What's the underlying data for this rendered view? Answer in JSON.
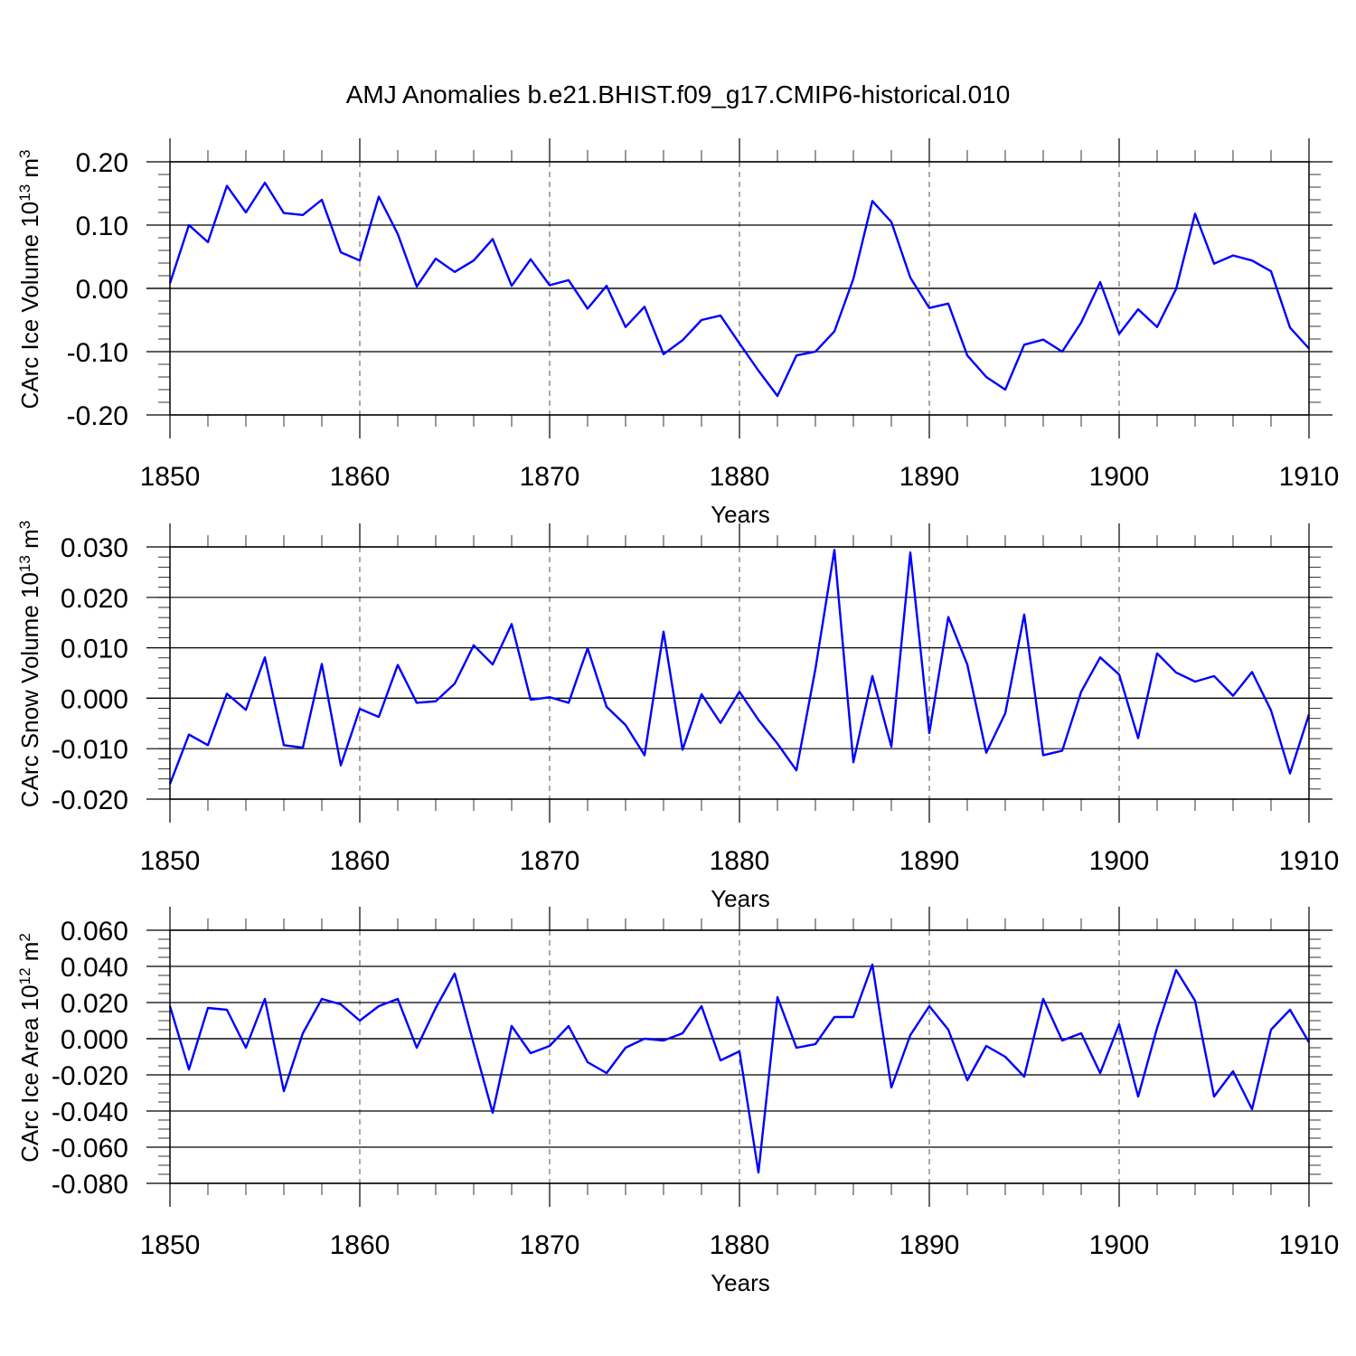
{
  "title": "AMJ Anomalies b.e21.BHIST.f09_g17.CMIP6-historical.010",
  "colors": {
    "line": "#0000ff",
    "frame": "#000000",
    "grid": "#555555"
  },
  "chart_data": [
    {
      "type": "line",
      "ylabel": {
        "prefix": "CArc Ice Volume 10",
        "exp": "13",
        "unit": " m",
        "unit_exp": "3"
      },
      "xlabel": "Years",
      "xlim": [
        1850,
        1910
      ],
      "ylim": [
        -0.2,
        0.2
      ],
      "x_ticks": [
        "1850",
        "1860",
        "1870",
        "1880",
        "1890",
        "1900",
        "1910"
      ],
      "y_ticks": [
        {
          "value": -0.2,
          "label": "-0.20"
        },
        {
          "value": -0.1,
          "label": "-0.10"
        },
        {
          "value": 0.0,
          "label": "0.00"
        },
        {
          "value": 0.1,
          "label": "0.10"
        },
        {
          "value": 0.2,
          "label": "0.20"
        }
      ],
      "y_minor": 0.02,
      "series": [
        {
          "name": "ice_volume",
          "x_start": 1850,
          "values": [
            0.008,
            0.1,
            0.073,
            0.162,
            0.12,
            0.167,
            0.119,
            0.116,
            0.14,
            0.057,
            0.044,
            0.145,
            0.086,
            0.003,
            0.047,
            0.026,
            0.044,
            0.078,
            0.004,
            0.046,
            0.005,
            0.013,
            -0.032,
            0.004,
            -0.061,
            -0.029,
            -0.104,
            -0.082,
            -0.05,
            -0.043,
            -0.087,
            -0.13,
            -0.17,
            -0.106,
            -0.1,
            -0.068,
            0.015,
            0.138,
            0.105,
            0.017,
            -0.031,
            -0.024,
            -0.106,
            -0.14,
            -0.16,
            -0.089,
            -0.081,
            -0.1,
            -0.054,
            0.01,
            -0.072,
            -0.033,
            -0.061,
            -0.001,
            0.118,
            0.039,
            0.052,
            0.044,
            0.027,
            -0.062,
            -0.095
          ]
        }
      ]
    },
    {
      "type": "line",
      "ylabel": {
        "prefix": "CArc Snow Volume 10",
        "exp": "13",
        "unit": " m",
        "unit_exp": "3"
      },
      "xlabel": "Years",
      "xlim": [
        1850,
        1910
      ],
      "ylim": [
        -0.02,
        0.03
      ],
      "x_ticks": [
        "1850",
        "1860",
        "1870",
        "1880",
        "1890",
        "1900",
        "1910"
      ],
      "y_ticks": [
        {
          "value": -0.02,
          "label": "-0.020"
        },
        {
          "value": -0.01,
          "label": "-0.010"
        },
        {
          "value": 0.0,
          "label": "0.000"
        },
        {
          "value": 0.01,
          "label": "0.010"
        },
        {
          "value": 0.02,
          "label": "0.020"
        },
        {
          "value": 0.03,
          "label": "0.030"
        }
      ],
      "y_minor": 0.002,
      "series": [
        {
          "name": "snow_volume",
          "x_start": 1850,
          "values": [
            -0.017,
            -0.0072,
            -0.0093,
            0.0009,
            -0.0023,
            0.0081,
            -0.0093,
            -0.0098,
            0.0068,
            -0.0133,
            -0.0021,
            -0.0037,
            0.0066,
            -0.0009,
            -0.0006,
            0.0029,
            0.0105,
            0.0067,
            0.0147,
            -0.0003,
            0.0002,
            -0.0009,
            0.0099,
            -0.0017,
            -0.0053,
            -0.0113,
            0.0132,
            -0.0102,
            0.0008,
            -0.0049,
            0.0013,
            -0.0043,
            -0.009,
            -0.0143,
            0.0058,
            0.0294,
            -0.0127,
            0.0044,
            -0.0096,
            0.0289,
            -0.0069,
            0.0161,
            0.0067,
            -0.0108,
            -0.003,
            0.0166,
            -0.0113,
            -0.0104,
            0.0013,
            0.0081,
            0.0047,
            -0.0079,
            0.0089,
            0.0051,
            0.0033,
            0.0044,
            0.0005,
            0.0052,
            -0.0024,
            -0.0149,
            -0.0032
          ]
        }
      ]
    },
    {
      "type": "line",
      "ylabel": {
        "prefix": "CArc Ice Area 10",
        "exp": "12",
        "unit": " m",
        "unit_exp": "2"
      },
      "xlabel": "Years",
      "xlim": [
        1850,
        1910
      ],
      "ylim": [
        -0.08,
        0.06
      ],
      "x_ticks": [
        "1850",
        "1860",
        "1870",
        "1880",
        "1890",
        "1900",
        "1910"
      ],
      "y_ticks": [
        {
          "value": -0.08,
          "label": "-0.080"
        },
        {
          "value": -0.06,
          "label": "-0.060"
        },
        {
          "value": -0.04,
          "label": "-0.040"
        },
        {
          "value": -0.02,
          "label": "-0.020"
        },
        {
          "value": 0.0,
          "label": "0.000"
        },
        {
          "value": 0.02,
          "label": "0.020"
        },
        {
          "value": 0.04,
          "label": "0.040"
        },
        {
          "value": 0.06,
          "label": "0.060"
        }
      ],
      "y_minor": 0.005,
      "series": [
        {
          "name": "ice_area",
          "x_start": 1850,
          "values": [
            0.018,
            -0.017,
            0.017,
            0.016,
            -0.005,
            0.022,
            -0.029,
            0.003,
            0.022,
            0.019,
            0.01,
            0.018,
            0.022,
            -0.005,
            0.017,
            0.036,
            -0.003,
            -0.041,
            0.007,
            -0.008,
            -0.004,
            0.007,
            -0.013,
            -0.019,
            -0.005,
            0.0,
            -0.001,
            0.003,
            0.018,
            -0.012,
            -0.007,
            -0.074,
            0.023,
            -0.005,
            -0.003,
            0.012,
            0.012,
            0.041,
            -0.027,
            0.002,
            0.018,
            0.005,
            -0.023,
            -0.004,
            -0.01,
            -0.021,
            0.022,
            -0.001,
            0.003,
            -0.019,
            0.008,
            -0.032,
            0.006,
            0.038,
            0.021,
            -0.032,
            -0.018,
            -0.039,
            0.005,
            0.016,
            -0.002
          ]
        }
      ]
    }
  ]
}
